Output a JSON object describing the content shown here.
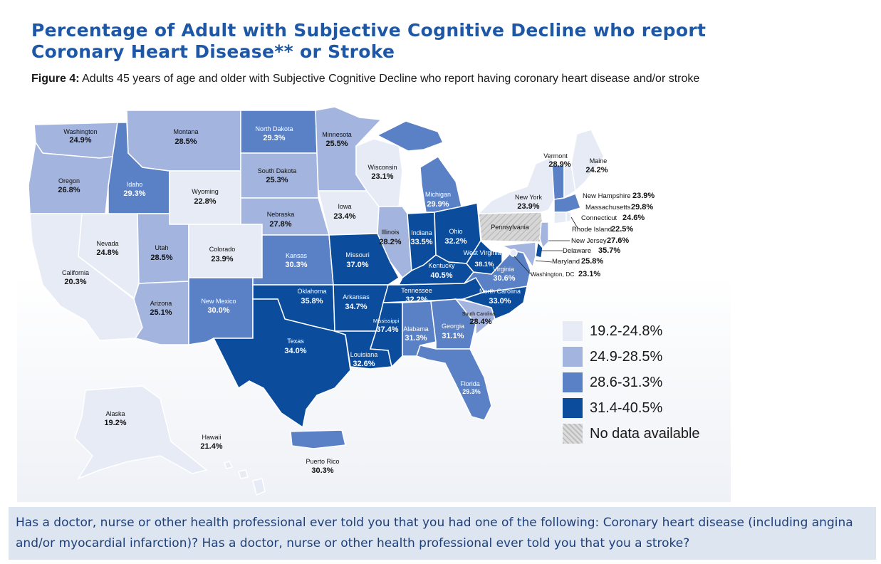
{
  "title": "Percentage of Adult with Subjective Cognitive Decline who report Coronary Heart Disease** or Stroke",
  "figure_label": "Figure 4:",
  "figure_caption": "Adults 45 years of age and older with Subjective Cognitive Decline who report having coronary heart disease and/or stroke",
  "footer_text": "Has a doctor, nurse or other health professional ever told you that you had one of the following: Coronary heart disease (including angina and/or myocardial infarction)? Has a doctor, nurse or other health professional ever told you that you a stroke?",
  "colors": {
    "c1": "#e6ebf5",
    "c2": "#a3b5df",
    "c3": "#5a80c6",
    "c4": "#0b4c9c",
    "nodata": "#cfcfcf",
    "title": "#1e57a6",
    "footer_bg": "#dde6f0"
  },
  "legend": [
    {
      "label": "19.2-24.8%",
      "class": "c1"
    },
    {
      "label": "24.9-28.5%",
      "class": "c2"
    },
    {
      "label": "28.6-31.3%",
      "class": "c3"
    },
    {
      "label": "31.4-40.5%",
      "class": "c4"
    },
    {
      "label": "No data available",
      "class": "nodata"
    }
  ],
  "states": {
    "wa": {
      "name": "Washington",
      "value": "24.9%",
      "class": "c2"
    },
    "or": {
      "name": "Oregon",
      "value": "26.8%",
      "class": "c2"
    },
    "ca": {
      "name": "California",
      "value": "20.3%",
      "class": "c1"
    },
    "nv": {
      "name": "Nevada",
      "value": "24.8%",
      "class": "c1"
    },
    "id": {
      "name": "Idaho",
      "value": "29.3%",
      "class": "c3"
    },
    "mt": {
      "name": "Montana",
      "value": "28.5%",
      "class": "c2"
    },
    "wy": {
      "name": "Wyoming",
      "value": "22.8%",
      "class": "c1"
    },
    "ut": {
      "name": "Utah",
      "value": "28.5%",
      "class": "c2"
    },
    "az": {
      "name": "Arizona",
      "value": "25.1%",
      "class": "c2"
    },
    "co": {
      "name": "Colorado",
      "value": "23.9%",
      "class": "c1"
    },
    "nm": {
      "name": "New Mexico",
      "value": "30.0%",
      "class": "c3"
    },
    "nd": {
      "name": "North Dakota",
      "value": "29.3%",
      "class": "c3"
    },
    "sd": {
      "name": "South Dakota",
      "value": "25.3%",
      "class": "c2"
    },
    "ne": {
      "name": "Nebraska",
      "value": "27.8%",
      "class": "c2"
    },
    "ks": {
      "name": "Kansas",
      "value": "30.3%",
      "class": "c3"
    },
    "ok": {
      "name": "Oklahoma",
      "value": "35.8%",
      "class": "c4"
    },
    "tx": {
      "name": "Texas",
      "value": "34.0%",
      "class": "c4"
    },
    "mn": {
      "name": "Minnesota",
      "value": "25.5%",
      "class": "c2"
    },
    "ia": {
      "name": "Iowa",
      "value": "23.4%",
      "class": "c1"
    },
    "mo": {
      "name": "Missouri",
      "value": "37.0%",
      "class": "c4"
    },
    "ar": {
      "name": "Arkansas",
      "value": "34.7%",
      "class": "c4"
    },
    "la": {
      "name": "Louisiana",
      "value": "32.6%",
      "class": "c4"
    },
    "wi": {
      "name": "Wisconsin",
      "value": "23.1%",
      "class": "c1"
    },
    "il": {
      "name": "Illinois",
      "value": "28.2%",
      "class": "c2"
    },
    "mi": {
      "name": "Michigan",
      "value": "29.9%",
      "class": "c3"
    },
    "in": {
      "name": "Indiana",
      "value": "33.5%",
      "class": "c4"
    },
    "oh": {
      "name": "Ohio",
      "value": "32.2%",
      "class": "c4"
    },
    "ky": {
      "name": "Kentucky",
      "value": "40.5%",
      "class": "c4"
    },
    "tn": {
      "name": "Tennessee",
      "value": "32.2%",
      "class": "c4"
    },
    "ms": {
      "name": "Mississippi",
      "value": "37.4%",
      "class": "c4"
    },
    "al": {
      "name": "Alabama",
      "value": "31.3%",
      "class": "c3"
    },
    "ga": {
      "name": "Georgia",
      "value": "31.1%",
      "class": "c3"
    },
    "fl": {
      "name": "Florida",
      "value": "29.3%",
      "class": "c3"
    },
    "sc": {
      "name": "South Carolina",
      "value": "28.4%",
      "class": "c2"
    },
    "nc": {
      "name": "North Carolina",
      "value": "33.0%",
      "class": "c4"
    },
    "va": {
      "name": "Virginia",
      "value": "30.6%",
      "class": "c3"
    },
    "wv": {
      "name": "West Virginia",
      "value": "38.1%",
      "class": "c4"
    },
    "pa": {
      "name": "Pennsylvania",
      "value": "",
      "class": "nodata"
    },
    "ny": {
      "name": "New York",
      "value": "23.9%",
      "class": "c1"
    },
    "vt": {
      "name": "Vermont",
      "value": "28.9%",
      "class": "c3"
    },
    "me": {
      "name": "Maine",
      "value": "24.2%",
      "class": "c1"
    },
    "nh": {
      "name": "New Hampshire",
      "value": "23.9%",
      "class": "c1"
    },
    "ma": {
      "name": "Massachusetts",
      "value": "29.8%",
      "class": "c3"
    },
    "ct": {
      "name": "Connecticut",
      "value": "24.6%",
      "class": "c1"
    },
    "ri": {
      "name": "Rhode Island",
      "value": "22.5%",
      "class": "c1"
    },
    "nj": {
      "name": "New Jersey",
      "value": "27.6%",
      "class": "c2"
    },
    "de": {
      "name": "Delaware",
      "value": "35.7%",
      "class": "c4"
    },
    "md": {
      "name": "Maryland",
      "value": "25.8%",
      "class": "c2"
    },
    "dc": {
      "name": "Washington, DC",
      "value": "23.1%",
      "class": "c1"
    },
    "ak": {
      "name": "Alaska",
      "value": "19.2%",
      "class": "c1"
    },
    "hi": {
      "name": "Hawaii",
      "value": "21.4%",
      "class": "c1"
    },
    "pr": {
      "name": "Puerto Rico",
      "value": "30.3%",
      "class": "c3"
    }
  }
}
